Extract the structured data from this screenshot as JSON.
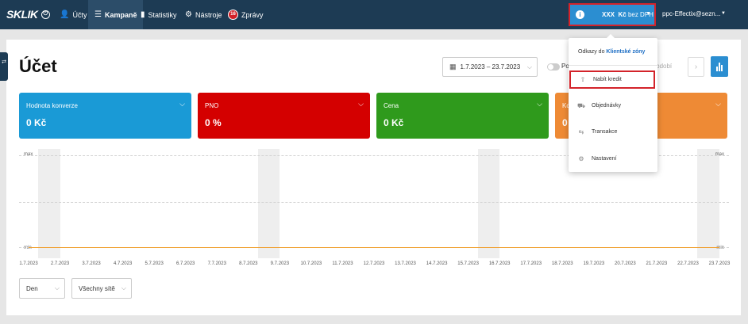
{
  "topbar": {
    "logo": "SKLIK",
    "nav": [
      {
        "label": "Účty",
        "icon": "users-icon"
      },
      {
        "label": "Kampaně",
        "icon": "list-icon"
      },
      {
        "label": "Statistiky",
        "icon": "bar-chart-icon"
      },
      {
        "label": "Nástroje",
        "icon": "gear-icon"
      },
      {
        "label": "Zprávy",
        "icon": "messages-icon",
        "badge": "16"
      }
    ],
    "credit": {
      "amount": "XXX",
      "currency": "Kč",
      "suffix": "bez DPH"
    },
    "user": "ppc-Effectix@sezn..."
  },
  "page": {
    "title": "Účet",
    "date_range": "1.7.2023 – 23.7.2023",
    "compare_label": "Po",
    "prev_period_label": "é období"
  },
  "tiles": [
    {
      "name": "Hodnota konverze",
      "value": "0 Kč",
      "color": "#1a9ad6"
    },
    {
      "name": "PNO",
      "value": "0 %",
      "color": "#d40000"
    },
    {
      "name": "Cena",
      "value": "0 Kč",
      "color": "#2f9a1c"
    },
    {
      "name": "Ko",
      "value": "0",
      "color": "#ee8a35"
    }
  ],
  "dropdown": {
    "header_prefix": "Odkazy do",
    "header_link": "Klientské zóny",
    "items": [
      {
        "label": "Nabít kredit",
        "icon": "upload-arrow-icon"
      },
      {
        "label": "Objednávky",
        "icon": "cart-icon"
      },
      {
        "label": "Transakce",
        "icon": "transfer-icon"
      },
      {
        "label": "Nastavení",
        "icon": "gear-icon"
      }
    ]
  },
  "chart_data": {
    "type": "line",
    "x": [
      "1.7.2023",
      "2.7.2023",
      "3.7.2023",
      "4.7.2023",
      "5.7.2023",
      "6.7.2023",
      "7.7.2023",
      "8.7.2023",
      "9.7.2023",
      "10.7.2023",
      "11.7.2023",
      "12.7.2023",
      "13.7.2023",
      "14.7.2023",
      "15.7.2023",
      "16.7.2023",
      "17.7.2023",
      "18.7.2023",
      "19.7.2023",
      "20.7.2023",
      "21.7.2023",
      "22.7.2023",
      "23.7.2023"
    ],
    "series": [
      {
        "values": [
          0,
          0,
          0,
          0,
          0,
          0,
          0,
          0,
          0,
          0,
          0,
          0,
          0,
          0,
          0,
          0,
          0,
          0,
          0,
          0,
          0,
          0,
          0
        ],
        "color": "#f0a030"
      }
    ],
    "y_labels": {
      "top": "max",
      "bottom": "min"
    },
    "weekend_bands": [
      [
        "1.7.2023",
        "2.7.2023"
      ],
      [
        "8.7.2023",
        "9.7.2023"
      ],
      [
        "15.7.2023",
        "16.7.2023"
      ],
      [
        "22.7.2023",
        "23.7.2023"
      ]
    ],
    "grid": true
  },
  "bottom": {
    "granularity": "Den",
    "network": "Všechny sítě"
  }
}
